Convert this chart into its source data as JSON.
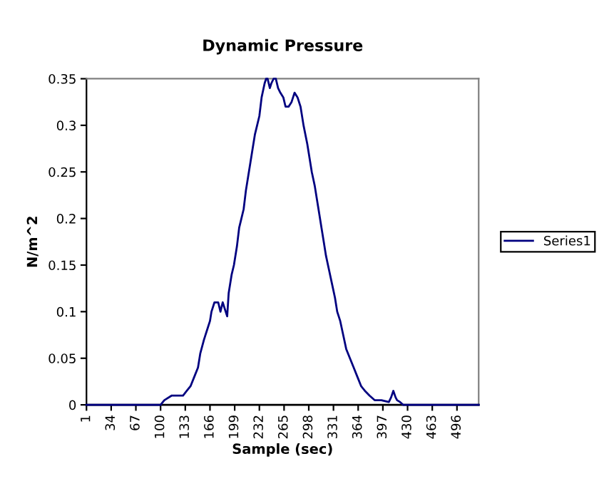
{
  "chart_data": {
    "type": "line",
    "title": "Dynamic Pressure",
    "xlabel": "Sample (sec)",
    "ylabel": "N/m^2",
    "xlim": [
      1,
      525
    ],
    "xticks": [
      1,
      34,
      67,
      100,
      133,
      166,
      199,
      232,
      265,
      298,
      331,
      364,
      397,
      430,
      463,
      496
    ],
    "ylim": [
      0,
      0.35
    ],
    "yticks": [
      0,
      0.05,
      0.1,
      0.15,
      0.2,
      0.25,
      0.3,
      0.35
    ],
    "grid": false,
    "legend": "right",
    "series": [
      {
        "name": "Series1",
        "color": "#000080",
        "x": [
          1,
          30,
          60,
          100,
          105,
          115,
          125,
          130,
          135,
          140,
          145,
          150,
          153,
          158,
          162,
          166,
          168,
          172,
          177,
          180,
          183,
          187,
          189,
          191,
          195,
          198,
          202,
          205,
          208,
          211,
          214,
          217,
          220,
          223,
          226,
          229,
          232,
          235,
          239,
          241,
          243,
          246,
          248,
          251,
          254,
          257,
          260,
          264,
          267,
          271,
          275,
          279,
          283,
          287,
          291,
          296,
          302,
          306,
          309,
          312,
          315,
          318,
          321,
          325,
          329,
          333,
          336,
          340,
          344,
          348,
          353,
          358,
          363,
          368,
          373,
          379,
          386,
          395,
          405,
          408,
          411,
          414,
          416,
          420,
          424,
          450,
          480,
          525
        ],
        "values": [
          0,
          0,
          0,
          0,
          0.005,
          0.01,
          0.01,
          0.01,
          0.015,
          0.02,
          0.03,
          0.04,
          0.055,
          0.07,
          0.08,
          0.09,
          0.1,
          0.11,
          0.11,
          0.1,
          0.11,
          0.1,
          0.095,
          0.12,
          0.14,
          0.15,
          0.17,
          0.19,
          0.2,
          0.21,
          0.23,
          0.245,
          0.26,
          0.275,
          0.29,
          0.3,
          0.31,
          0.33,
          0.345,
          0.35,
          0.35,
          0.34,
          0.345,
          0.35,
          0.35,
          0.34,
          0.335,
          0.33,
          0.32,
          0.32,
          0.325,
          0.335,
          0.33,
          0.32,
          0.3,
          0.28,
          0.25,
          0.235,
          0.22,
          0.205,
          0.19,
          0.175,
          0.16,
          0.145,
          0.13,
          0.115,
          0.1,
          0.09,
          0.075,
          0.06,
          0.05,
          0.04,
          0.03,
          0.02,
          0.015,
          0.01,
          0.005,
          0.005,
          0.003,
          0.008,
          0.015,
          0.008,
          0.005,
          0.003,
          0,
          0,
          0,
          0
        ]
      }
    ]
  }
}
